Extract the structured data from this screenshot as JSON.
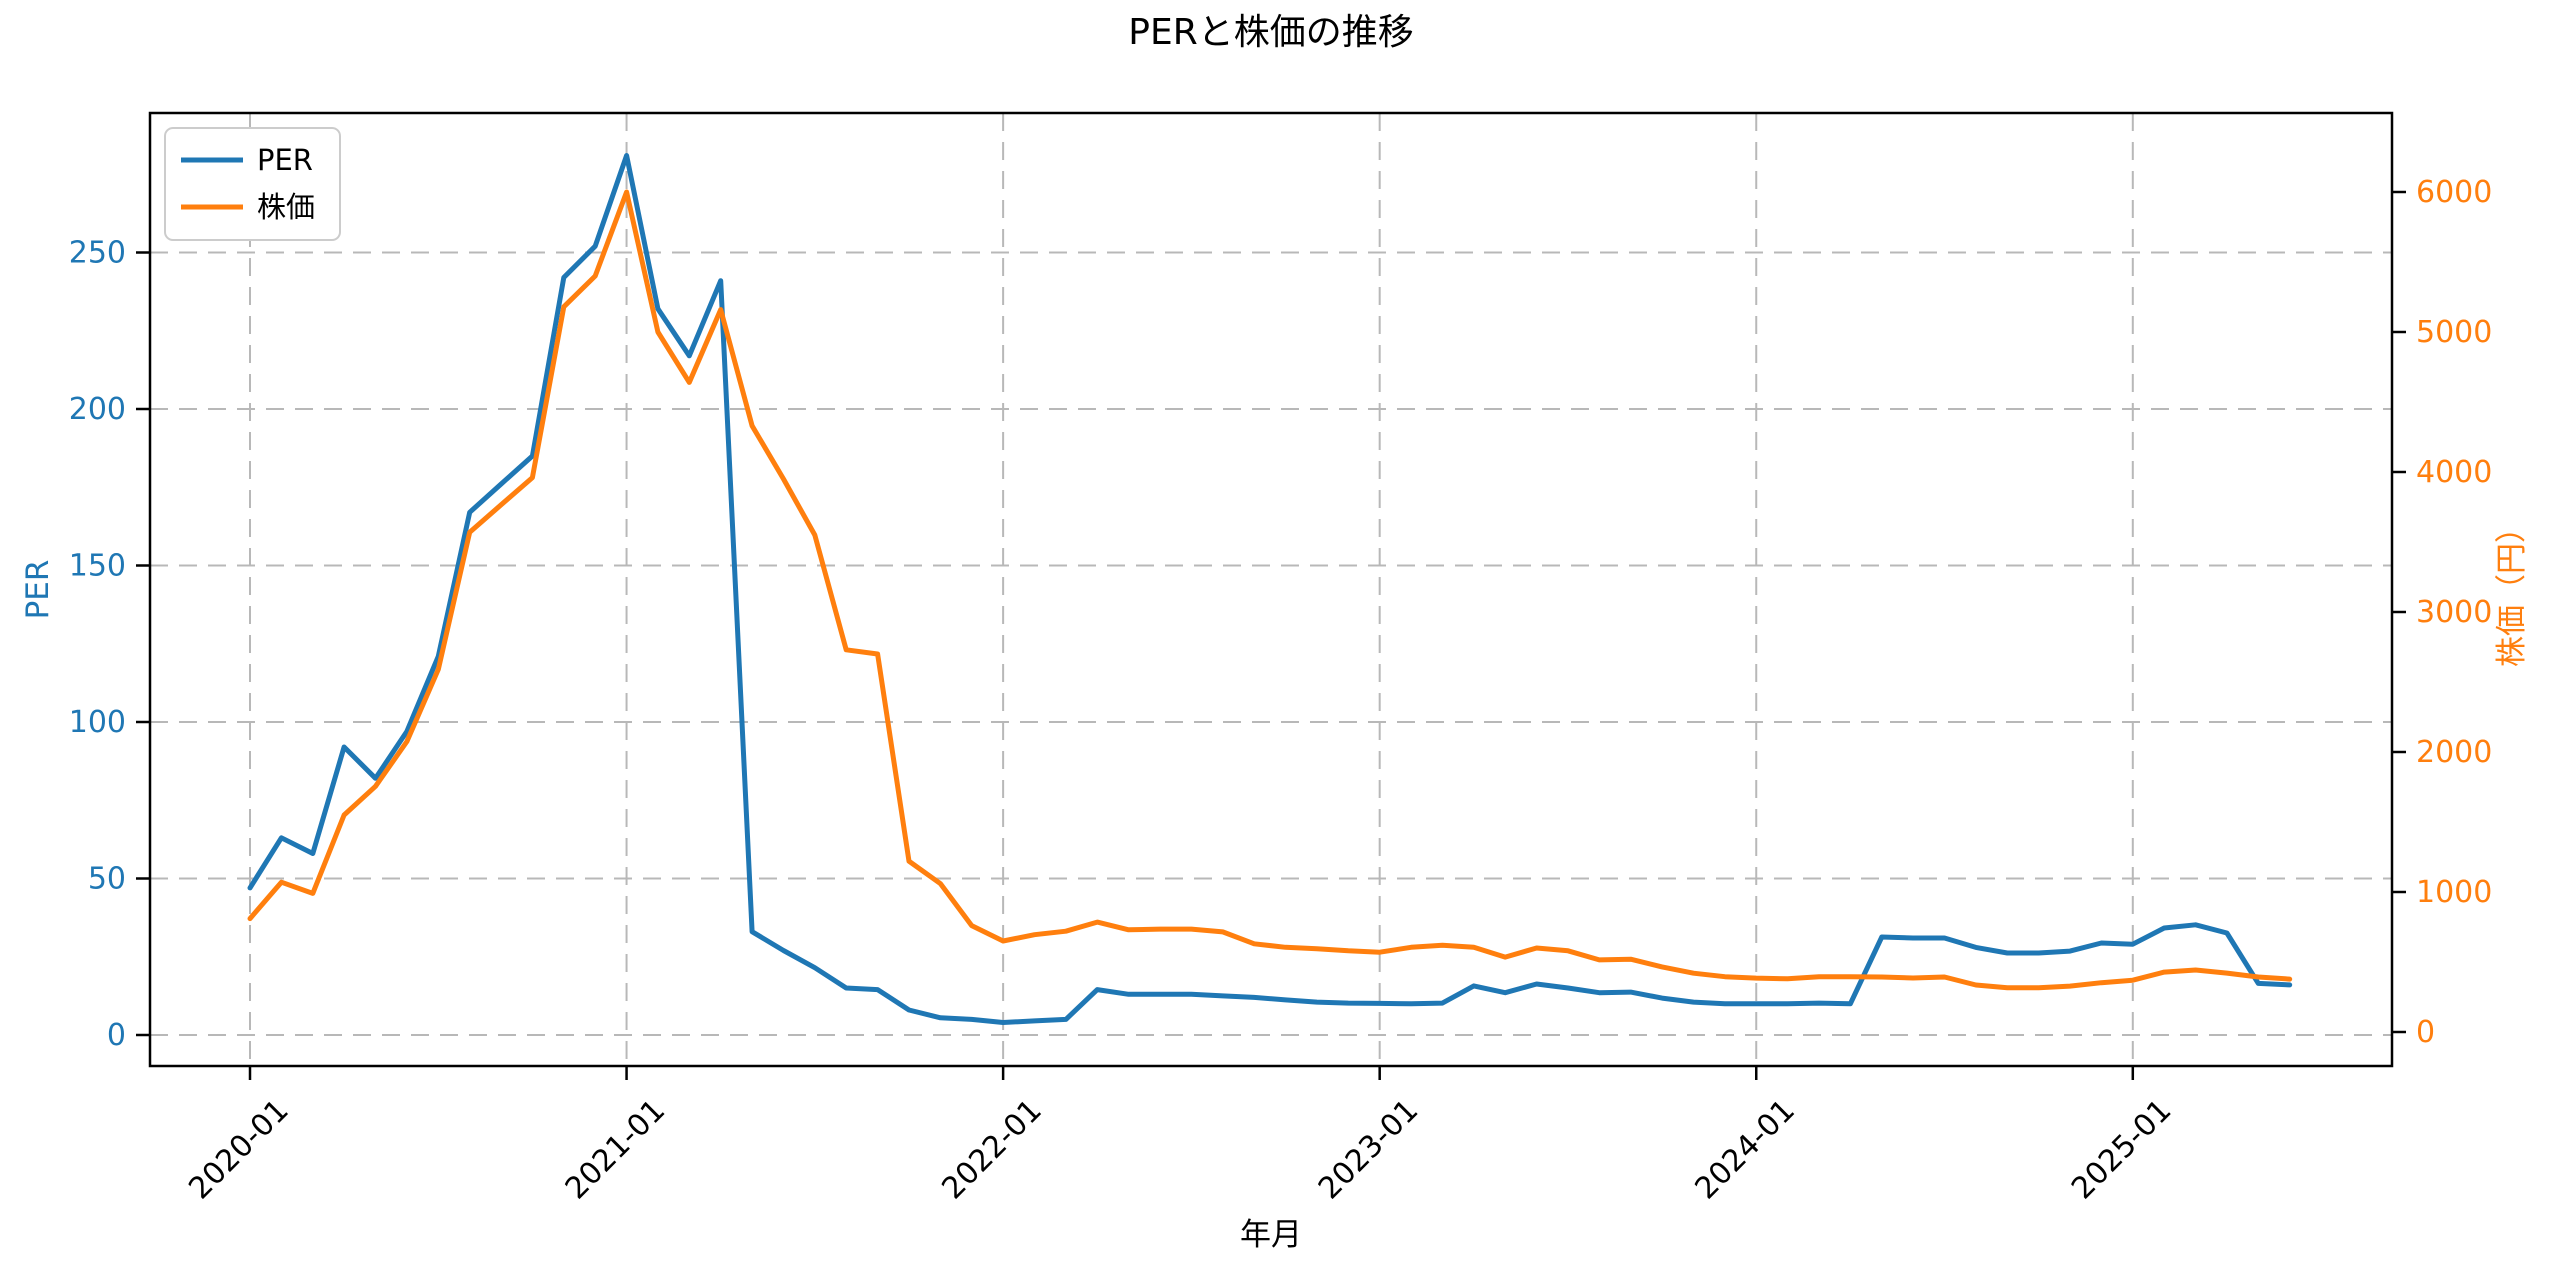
{
  "figure": {
    "title": "PERと株価の推移",
    "xlabel": "年月",
    "background": "#ffffff"
  },
  "legend": {
    "position": "upper left",
    "items": [
      {
        "label": "PER",
        "color": "#1f77b4"
      },
      {
        "label": "株価",
        "color": "#ff7f0e"
      }
    ]
  },
  "chart_data": {
    "type": "line",
    "title": "PERと株価の推移",
    "xlabel": "年月",
    "grid": true,
    "legend_position": "upper left",
    "x": [
      "2020-01",
      "2020-02",
      "2020-03",
      "2020-04",
      "2020-05",
      "2020-06",
      "2020-07",
      "2020-08",
      "2020-09",
      "2020-10",
      "2020-11",
      "2020-12",
      "2021-01",
      "2021-02",
      "2021-03",
      "2021-04",
      "2021-05",
      "2021-06",
      "2021-07",
      "2021-08",
      "2021-09",
      "2021-10",
      "2021-11",
      "2021-12",
      "2022-01",
      "2022-02",
      "2022-03",
      "2022-04",
      "2022-05",
      "2022-06",
      "2022-07",
      "2022-08",
      "2022-09",
      "2022-10",
      "2022-11",
      "2022-12",
      "2023-01",
      "2023-02",
      "2023-03",
      "2023-04",
      "2023-05",
      "2023-06",
      "2023-07",
      "2023-08",
      "2023-09",
      "2023-10",
      "2023-11",
      "2023-12",
      "2024-01",
      "2024-02",
      "2024-03",
      "2024-04",
      "2024-05",
      "2024-06",
      "2024-07",
      "2024-08",
      "2024-09",
      "2024-10",
      "2024-11",
      "2024-12",
      "2025-01",
      "2025-02",
      "2025-03",
      "2025-04",
      "2025-05",
      "2025-06"
    ],
    "x_tick_indices": [
      0,
      12,
      24,
      36,
      48,
      60
    ],
    "x_tick_labels": [
      "2020-01",
      "2021-01",
      "2022-01",
      "2023-01",
      "2024-01",
      "2025-01"
    ],
    "series": [
      {
        "name": "PER",
        "axis": "left",
        "color": "#1f77b4",
        "values": [
          47,
          63,
          58,
          92,
          82,
          97,
          121,
          167,
          176,
          185,
          242,
          252,
          281,
          232,
          217,
          241,
          33,
          27,
          21.5,
          15,
          14.5,
          8,
          5.5,
          5,
          4,
          4.5,
          5,
          14.5,
          13,
          13,
          13,
          12.5,
          12,
          11.2,
          10.5,
          10.2,
          10.1,
          10,
          10.2,
          15.7,
          13.5,
          16.3,
          15,
          13.5,
          13.7,
          11.8,
          10.5,
          10,
          10,
          10,
          10.2,
          10,
          31.3,
          31,
          31,
          28,
          26.2,
          26.2,
          26.8,
          29.4,
          29,
          34.2,
          35.2,
          32.6,
          16.5,
          16
        ]
      },
      {
        "name": "株価",
        "axis": "right",
        "color": "#ff7f0e",
        "values": [
          810,
          1070,
          990,
          1550,
          1755,
          2075,
          2590,
          3570,
          3765,
          3960,
          5180,
          5400,
          6000,
          5000,
          4640,
          5160,
          4330,
          3950,
          3550,
          2730,
          2700,
          1220,
          1060,
          760,
          650,
          695,
          720,
          785,
          730,
          735,
          735,
          715,
          630,
          605,
          595,
          580,
          570,
          605,
          620,
          605,
          535,
          600,
          580,
          515,
          520,
          465,
          420,
          395,
          385,
          380,
          395,
          395,
          393,
          386,
          393,
          336,
          316,
          316,
          328,
          352,
          370,
          428,
          443,
          421,
          393,
          378
        ]
      }
    ],
    "left_axis": {
      "label": "PER",
      "color": "#1f77b4",
      "ticks": [
        0,
        50,
        100,
        150,
        200,
        250
      ]
    },
    "right_axis": {
      "label": "株価（円）",
      "color": "#ff7f0e",
      "ticks": [
        0,
        1000,
        2000,
        3000,
        4000,
        5000,
        6000
      ]
    },
    "style": {
      "grid_color": "#b8b8b8",
      "frame_color": "#000000",
      "tick_label_color": "#000000",
      "line_width": 5
    }
  }
}
